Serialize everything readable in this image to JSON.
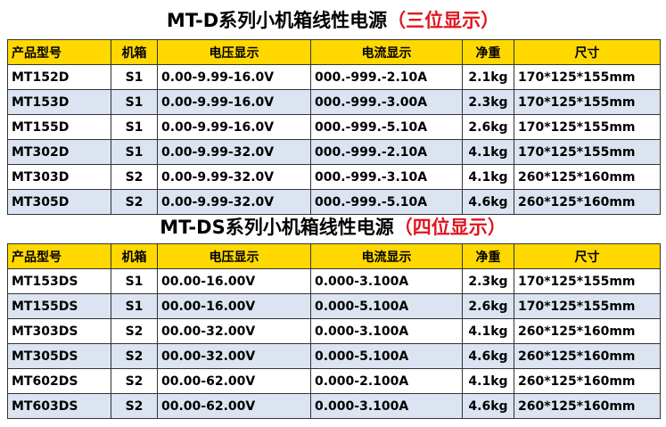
{
  "table1": {
    "title_main": "MT-D系列小机箱线性电源",
    "title_paren": "（三位显示）",
    "headers": [
      "产品型号",
      "机箱",
      "电压显示",
      "电流显示",
      "净重",
      "尺寸"
    ],
    "rows": [
      [
        "MT152D",
        "S1",
        "0.00-9.99-16.0V",
        "000.-999.-2.10A",
        "2.1kg",
        "170*125*155mm"
      ],
      [
        "MT153D",
        "S1",
        "0.00-9.99-16.0V",
        "000.-999.-3.00A",
        "2.3kg",
        "170*125*155mm"
      ],
      [
        "MT155D",
        "S1",
        "0.00-9.99-16.0V",
        "000.-999.-5.10A",
        "2.6kg",
        "170*125*155mm"
      ],
      [
        "MT302D",
        "S1",
        "0.00-9.99-32.0V",
        "000.-999.-2.10A",
        "4.1kg",
        "170*125*155mm"
      ],
      [
        "MT303D",
        "S2",
        "0.00-9.99-32.0V",
        "000.-999.-3.10A",
        "4.1kg",
        "260*125*160mm"
      ],
      [
        "MT305D",
        "S2",
        "0.00-9.99-32.0V",
        "000.-999.-5.10A",
        "4.6kg",
        "260*125*160mm"
      ]
    ]
  },
  "table2": {
    "title_main": "MT-DS系列小机箱线性电源",
    "title_paren": "（四位显示）",
    "headers": [
      "产品型号",
      "机箱",
      "电压显示",
      "电流显示",
      "净重",
      "尺寸"
    ],
    "rows": [
      [
        "MT153DS",
        "S1",
        "00.00-16.00V",
        "0.000-3.100A",
        "2.3kg",
        "170*125*155mm"
      ],
      [
        "MT155DS",
        "S1",
        "00.00-16.00V",
        "0.000-5.100A",
        "2.6kg",
        "170*125*155mm"
      ],
      [
        "MT303DS",
        "S2",
        "00.00-32.00V",
        "0.000-3.100A",
        "4.1kg",
        "260*125*160mm"
      ],
      [
        "MT305DS",
        "S2",
        "00.00-32.00V",
        "0.000-5.100A",
        "4.6kg",
        "260*125*160mm"
      ],
      [
        "MT602DS",
        "S2",
        "00.00-62.00V",
        "0.000-2.100A",
        "4.1kg",
        "260*125*160mm"
      ],
      [
        "MT603DS",
        "S2",
        "00.00-62.00V",
        "0.000-3.100A",
        "4.6kg",
        "260*125*160mm"
      ]
    ]
  },
  "colors": {
    "header_bg": "#ffd800",
    "alt_row_bg": "#dbe4f0",
    "title_highlight": "#e0141e"
  }
}
